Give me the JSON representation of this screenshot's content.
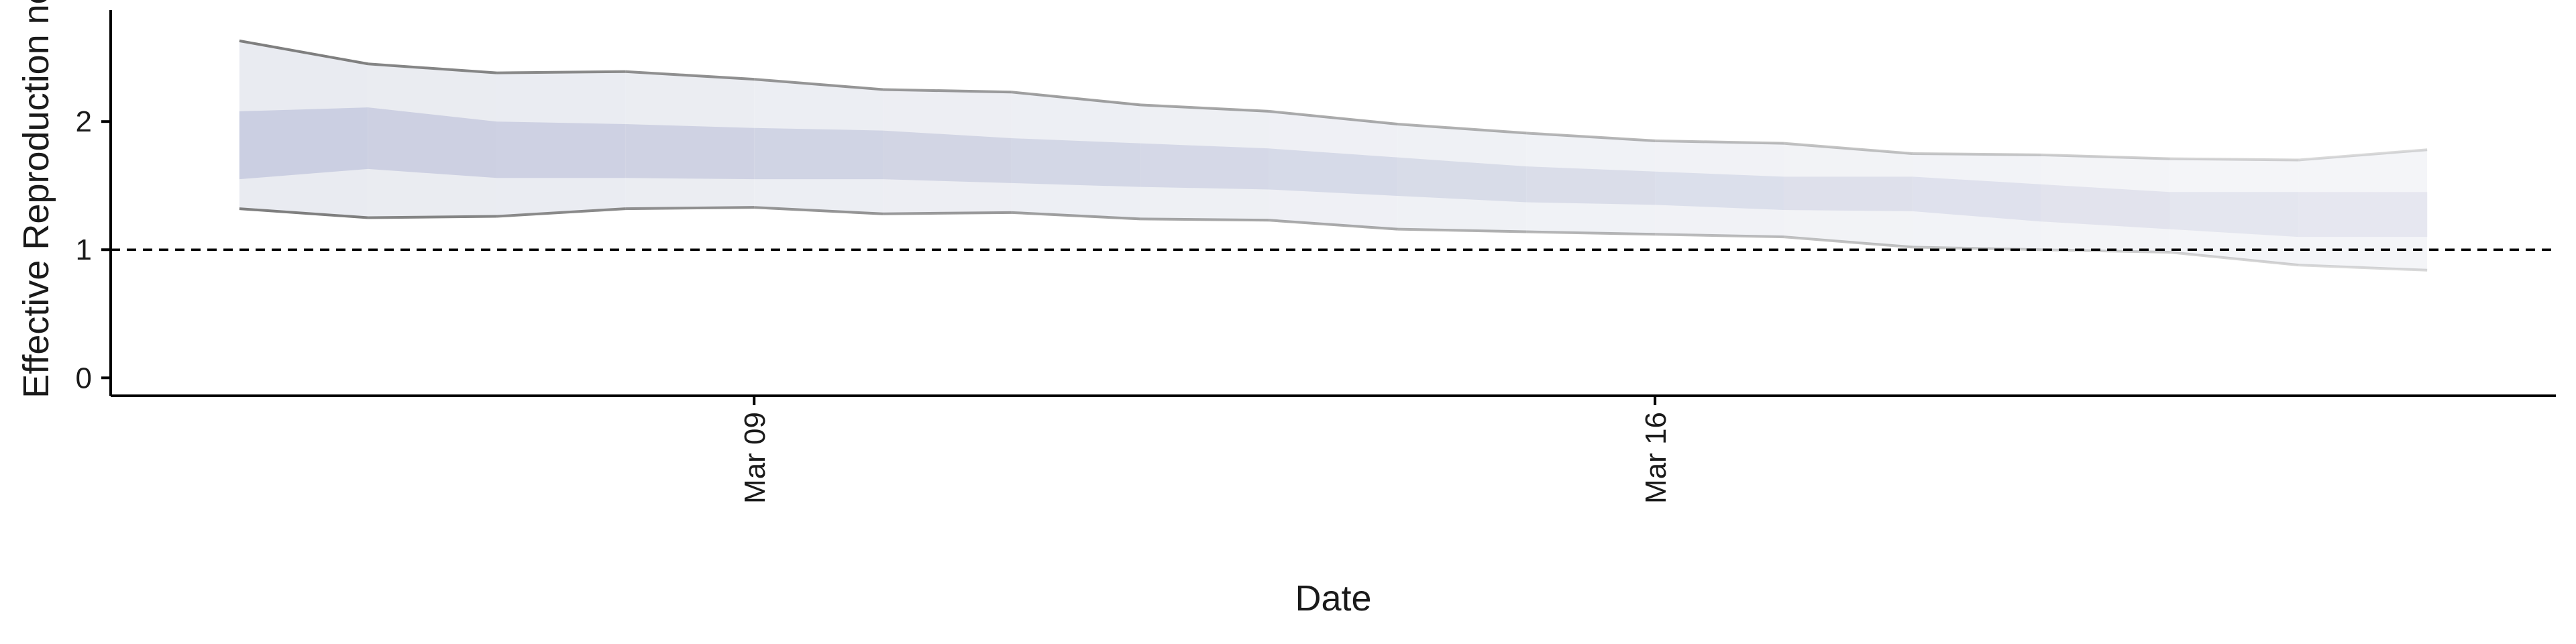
{
  "chart_data": {
    "type": "area",
    "xlabel": "Date",
    "ylabel": "Effective Reproduction no.",
    "x_tick_labels": [
      "Mar 09",
      "Mar 16"
    ],
    "x_tick_dates": [
      "2020-03-09",
      "2020-03-16"
    ],
    "y_ticks": [
      0,
      1,
      2
    ],
    "ylim": [
      -0.14,
      2.87
    ],
    "xlim": [
      "2020-03-04",
      "2020-03-23"
    ],
    "threshold": 1,
    "colors": {
      "outer_band": "#e9ebf1",
      "inner_band": "#c9cde0",
      "outer_line": "#7f7f7f",
      "threshold_line": "#000000",
      "axis": "#000000"
    },
    "series": [
      {
        "x": [
          "2020-03-05",
          "2020-03-06",
          "2020-03-07",
          "2020-03-08",
          "2020-03-09",
          "2020-03-10",
          "2020-03-11",
          "2020-03-12",
          "2020-03-13",
          "2020-03-14",
          "2020-03-15",
          "2020-03-16",
          "2020-03-17",
          "2020-03-18",
          "2020-03-19",
          "2020-03-20",
          "2020-03-21",
          "2020-03-22"
        ],
        "lower_90": [
          1.32,
          1.25,
          1.26,
          1.32,
          1.33,
          1.28,
          1.29,
          1.24,
          1.23,
          1.16,
          1.14,
          1.12,
          1.1,
          1.02,
          1.0,
          0.98,
          0.88,
          0.84
        ],
        "upper_90": [
          2.63,
          2.45,
          2.38,
          2.39,
          2.33,
          2.25,
          2.23,
          2.13,
          2.08,
          1.98,
          1.91,
          1.85,
          1.83,
          1.75,
          1.74,
          1.71,
          1.7,
          1.78
        ],
        "lower_50": [
          1.55,
          1.63,
          1.56,
          1.56,
          1.55,
          1.55,
          1.52,
          1.49,
          1.47,
          1.42,
          1.37,
          1.35,
          1.31,
          1.3,
          1.22,
          1.16,
          1.1,
          1.1
        ],
        "upper_50": [
          2.08,
          2.11,
          2.0,
          1.98,
          1.95,
          1.93,
          1.87,
          1.83,
          1.79,
          1.72,
          1.65,
          1.61,
          1.57,
          1.57,
          1.51,
          1.45,
          1.45,
          1.45
        ]
      }
    ]
  }
}
